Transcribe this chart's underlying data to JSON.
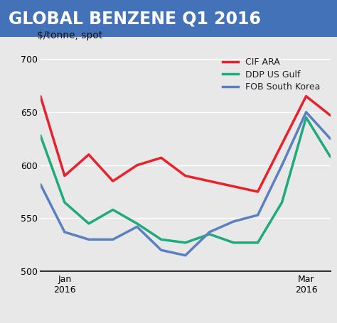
{
  "title": "GLOBAL BENZENE Q1 2016",
  "title_bg_color": "#4472b8",
  "title_text_color": "#ffffff",
  "ylabel": "$/tonne, spot",
  "plot_bg_color": "#e8e8e8",
  "fig_bg_color": "#e8e8e8",
  "ylim": [
    500,
    710
  ],
  "yticks": [
    500,
    550,
    600,
    650,
    700
  ],
  "n_points": 13,
  "series": {
    "CIF ARA": {
      "color": "#e8212b",
      "linewidth": 2.5,
      "values": [
        665,
        590,
        610,
        585,
        600,
        607,
        590,
        585,
        580,
        575,
        620,
        665,
        647
      ]
    },
    "DDP US Gulf": {
      "color": "#1faa7d",
      "linewidth": 2.5,
      "values": [
        628,
        565,
        545,
        558,
        545,
        530,
        527,
        535,
        527,
        527,
        565,
        645,
        608
      ]
    },
    "FOB South Korea": {
      "color": "#5b7fc2",
      "linewidth": 2.5,
      "values": [
        582,
        537,
        530,
        530,
        542,
        520,
        515,
        537,
        547,
        553,
        600,
        650,
        625
      ]
    }
  },
  "legend_labels": [
    "CIF ARA",
    "DDP US Gulf",
    "FOB South Korea"
  ],
  "legend_colors": [
    "#e8212b",
    "#1faa7d",
    "#5b7fc2"
  ],
  "title_fontsize": 17,
  "ylabel_fontsize": 10,
  "tick_fontsize": 9,
  "legend_fontsize": 9
}
